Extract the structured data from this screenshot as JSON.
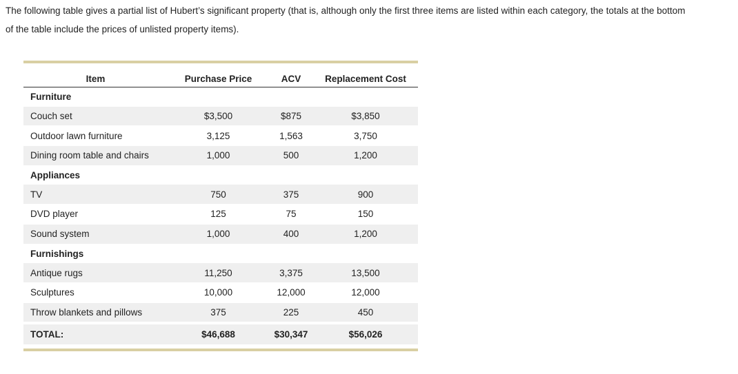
{
  "intro_text": "The following table gives a partial list of Hubert’s significant property (that is, although only the first three items are listed within each category, the totals at the bottom of the table include the prices of unlisted property items).",
  "table": {
    "headers": [
      "Item",
      "Purchase Price",
      "ACV",
      "Replacement Cost"
    ],
    "categories": [
      {
        "name": "Furniture",
        "rows": [
          {
            "item": "Couch set",
            "purchase": "$3,500",
            "acv": "$875",
            "replacement": "$3,850"
          },
          {
            "item": "Outdoor lawn furniture",
            "purchase": "3,125",
            "acv": "1,563",
            "replacement": "3,750"
          },
          {
            "item": "Dining room table and chairs",
            "purchase": "1,000",
            "acv": "500",
            "replacement": "1,200"
          }
        ]
      },
      {
        "name": "Appliances",
        "rows": [
          {
            "item": "TV",
            "purchase": "750",
            "acv": "375",
            "replacement": "900"
          },
          {
            "item": "DVD player",
            "purchase": "125",
            "acv": "75",
            "replacement": "150"
          },
          {
            "item": "Sound system",
            "purchase": "1,000",
            "acv": "400",
            "replacement": "1,200"
          }
        ]
      },
      {
        "name": "Furnishings",
        "rows": [
          {
            "item": "Antique rugs",
            "purchase": "11,250",
            "acv": "3,375",
            "replacement": "13,500"
          },
          {
            "item": "Sculptures",
            "purchase": "10,000",
            "acv": "12,000",
            "replacement": "12,000"
          },
          {
            "item": "Throw blankets and pillows",
            "purchase": "375",
            "acv": "225",
            "replacement": "450"
          }
        ]
      }
    ],
    "total": {
      "label": "TOTAL:",
      "purchase": "$46,688",
      "acv": "$30,347",
      "replacement": "$56,026"
    }
  },
  "colors": {
    "rule": "#d9cfa3",
    "shade": "#efefef"
  }
}
